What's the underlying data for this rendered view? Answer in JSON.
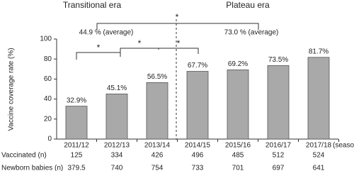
{
  "chart_data": {
    "type": "bar",
    "y_label": "Vaccine coverage rate (%)",
    "x_label": "(season)",
    "categories": [
      "2011/12",
      "2012/13",
      "2013/14",
      "2014/15",
      "2015/16",
      "2016/17",
      "2017/18"
    ],
    "values": [
      32.9,
      45.1,
      56.5,
      67.7,
      69.2,
      73.5,
      81.7
    ],
    "value_labels": [
      "32.9%",
      "45.1%",
      "56.5%",
      "67.7%",
      "69.2%",
      "73.5%",
      "81.7%"
    ],
    "color": "#a9a9a9",
    "ylim": [
      0,
      100
    ],
    "yticks": [
      0,
      20,
      40,
      60,
      80,
      100
    ],
    "era_labels": [
      "Transitional era",
      "Plateau era"
    ],
    "average_labels": [
      "44.9 % (average)",
      "73.0 % (average)"
    ],
    "significance_marks": [
      "*",
      "*",
      "*",
      "*"
    ],
    "table": {
      "rows": [
        {
          "label": "Vaccinated (n)",
          "values": [
            125,
            334,
            426,
            496,
            485,
            512,
            524
          ]
        },
        {
          "label": "Newborn babies (n)",
          "values": [
            379.5,
            740,
            754,
            733,
            701,
            697,
            641
          ]
        }
      ]
    }
  }
}
